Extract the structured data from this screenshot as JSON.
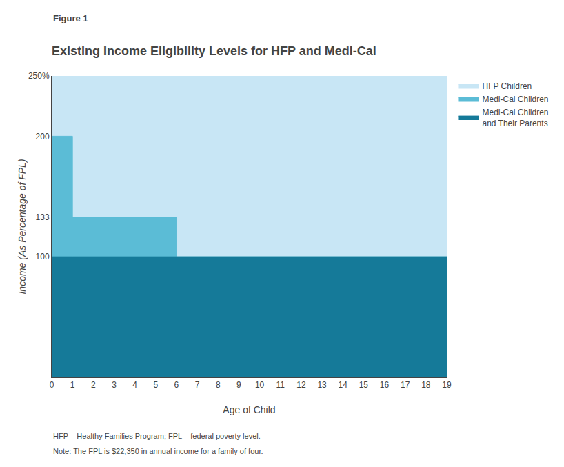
{
  "chart_data": {
    "type": "area",
    "title": "Existing Income Eligibility Levels for HFP and Medi-Cal",
    "xlabel": "Age of Child",
    "ylabel": "Income (As Percentage of FPL)",
    "annotations": [
      "Figure 1",
      "HFP = Healthy Families Program; FPL = federal poverty level.",
      "Note: The FPL is $22,350 in annual income for a family of four."
    ],
    "x": [
      0,
      1,
      6,
      19
    ],
    "series": [
      {
        "name": "HFP Children",
        "color": "#C8E6F5",
        "values": [
          250,
          250,
          250,
          250
        ]
      },
      {
        "name": "Medi-Cal Children",
        "color": "#5BBCD6",
        "values": [
          200,
          133,
          100,
          100
        ]
      },
      {
        "name": "Medi-Cal Children\nand Their Parents",
        "color": "#157A99",
        "values": [
          100,
          100,
          100,
          100
        ]
      }
    ],
    "line_style": "step",
    "xlim": [
      0,
      19
    ],
    "xticks": [
      0,
      1,
      2,
      3,
      4,
      5,
      6,
      7,
      8,
      9,
      10,
      11,
      12,
      13,
      14,
      15,
      16,
      17,
      18,
      19
    ],
    "ylim": [
      0,
      250
    ],
    "yticks": [
      100,
      133,
      200,
      {
        "value": 250,
        "label": "250%"
      }
    ],
    "grid": false,
    "legend": "right"
  }
}
